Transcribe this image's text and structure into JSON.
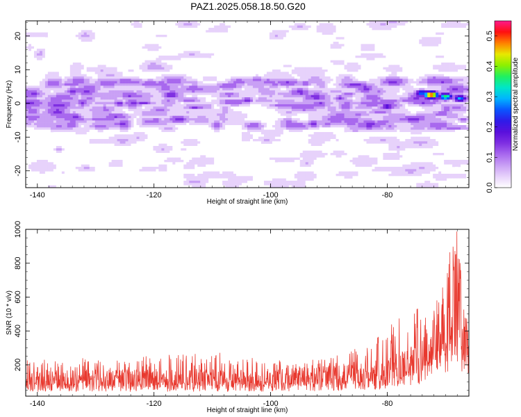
{
  "title": "PAZ1.2025.058.18.50.G20",
  "colors": {
    "snr_line": "#e8382e",
    "colormap": [
      "#ffffff",
      "#e7d2fb",
      "#c9a0f5",
      "#a868ee",
      "#7f2fe2",
      "#5a10dc",
      "#2f1be8",
      "#0a55ff",
      "#00b4ff",
      "#00e6c8",
      "#20f060",
      "#8cf000",
      "#e8e800",
      "#ff8000",
      "#ff1010",
      "#ff1a8c"
    ]
  },
  "chart_data": [
    {
      "type": "heatmap",
      "name": "spectrogram",
      "xlabel": "Height of straight line (km)",
      "ylabel": "Frequency (Hz)",
      "xlim": [
        -142,
        -66
      ],
      "ylim": [
        -25,
        24.5
      ],
      "x_ticks": [
        -140,
        -120,
        -100,
        -80
      ],
      "x_tick_labels": [
        "-140",
        "-120",
        "-100",
        "-80"
      ],
      "y_ticks": [
        -20,
        -10,
        0,
        10,
        20
      ],
      "y_tick_labels": [
        "-20",
        "-10",
        "0",
        "10",
        "20"
      ],
      "grid": false,
      "colorbar": {
        "label": "Normalized spectral amplitude",
        "range": [
          0.0,
          0.55
        ],
        "ticks": [
          0.0,
          0.1,
          0.2,
          0.3,
          0.4,
          0.5
        ],
        "tick_labels": [
          "0.0",
          "0.1",
          "0.2",
          "0.3",
          "0.4",
          "0.5"
        ]
      },
      "features": [
        {
          "x_range": [
            -142,
            -66
          ],
          "freq_center": 0,
          "freq_width": 6,
          "amplitude": 0.1,
          "note_free": true
        },
        {
          "x": -140.5,
          "freq": 3,
          "amplitude": 0.16
        },
        {
          "x": -134,
          "freq": 3.5,
          "amplitude": 0.18
        },
        {
          "x": -126,
          "freq": 0,
          "amplitude": 0.17
        },
        {
          "x": -117,
          "freq": 2.5,
          "amplitude": 0.2
        },
        {
          "x": -104,
          "freq": 1,
          "amplitude": 0.17
        },
        {
          "x": -95,
          "freq": 3.5,
          "amplitude": 0.18
        },
        {
          "x": -88,
          "freq": 1.5,
          "amplitude": 0.16
        },
        {
          "x": -80,
          "freq": -1,
          "amplitude": 0.22
        },
        {
          "x": -74,
          "freq": 3,
          "amplitude": 0.3
        },
        {
          "x": -72.5,
          "freq": 2.5,
          "amplitude": 0.55
        },
        {
          "x": -70,
          "freq": 2,
          "amplitude": 0.38
        },
        {
          "x": -67.5,
          "freq": 1.5,
          "amplitude": 0.3
        }
      ]
    },
    {
      "type": "line",
      "name": "snr",
      "xlabel": "Height of straight line (km)",
      "ylabel": "SNR (10 * v/v)",
      "xlim": [
        -142,
        -66
      ],
      "ylim": [
        15,
        1000
      ],
      "x_ticks": [
        -140,
        -120,
        -100,
        -80
      ],
      "x_tick_labels": [
        "-140",
        "-120",
        "-100",
        "-80"
      ],
      "y_ticks": [
        200,
        400,
        600,
        800,
        1000
      ],
      "y_tick_labels": [
        "200",
        "400",
        "600",
        "800",
        "1000"
      ],
      "grid": false,
      "envelope": {
        "x": [
          -142,
          -130,
          -120,
          -110,
          -100,
          -90,
          -85,
          -82,
          -80,
          -78,
          -76,
          -74,
          -72,
          -70,
          -69,
          -68,
          -67.5,
          -67,
          -66
        ],
        "baseline": [
          115,
          115,
          118,
          118,
          118,
          130,
          140,
          150,
          165,
          185,
          210,
          250,
          320,
          420,
          520,
          600,
          500,
          350,
          300
        ],
        "peak_max": [
          250,
          240,
          260,
          280,
          230,
          240,
          300,
          350,
          420,
          480,
          550,
          600,
          620,
          680,
          930,
          1000,
          880,
          560,
          470
        ]
      }
    }
  ]
}
